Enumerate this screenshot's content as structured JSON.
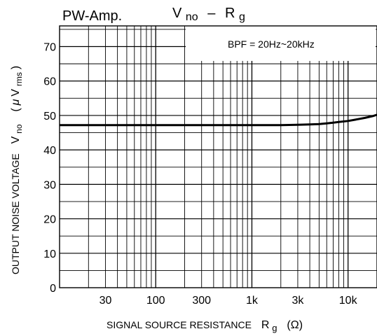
{
  "chart_data": {
    "type": "line",
    "title_main": "V",
    "title_main_sub": "no",
    "title_dash": "–",
    "title_r": "R",
    "title_r_sub": "g",
    "corner_label": "PW-Amp.",
    "annotation": "BPF = 20Hz~20kHz",
    "xlabel_text": "SIGNAL SOURCE RESISTANCE",
    "xlabel_sym": "R",
    "xlabel_sub": "g",
    "xlabel_unit": "(Ω)",
    "ylabel_text": "OUTPUT NOISE VOLTAGE",
    "ylabel_sym": "V",
    "ylabel_sub": "no",
    "ylabel_unit_open": "(",
    "ylabel_unit_mu": "μ",
    "ylabel_unit_v": "V",
    "ylabel_unit_sub": "rms",
    "ylabel_unit_close": ")",
    "x_scale": "log",
    "xlim": [
      10,
      20000
    ],
    "ylim": [
      0,
      76
    ],
    "x_ticks": [
      {
        "value": 30,
        "label": "30"
      },
      {
        "value": 100,
        "label": "100"
      },
      {
        "value": 300,
        "label": "300"
      },
      {
        "value": 1000,
        "label": "1k"
      },
      {
        "value": 3000,
        "label": "3k"
      },
      {
        "value": 10000,
        "label": "10k"
      }
    ],
    "y_ticks": [
      {
        "value": 0,
        "label": "0"
      },
      {
        "value": 10,
        "label": "10"
      },
      {
        "value": 20,
        "label": "20"
      },
      {
        "value": 30,
        "label": "30"
      },
      {
        "value": 40,
        "label": "40"
      },
      {
        "value": 50,
        "label": "50"
      },
      {
        "value": 60,
        "label": "60"
      },
      {
        "value": 70,
        "label": "70"
      }
    ],
    "series": [
      {
        "x": [
          10,
          100,
          1000,
          2000,
          3000,
          4000,
          5000,
          6000,
          7000,
          8000,
          10000,
          12000,
          15000,
          18000,
          20000
        ],
        "y": [
          47.2,
          47.2,
          47.2,
          47.2,
          47.3,
          47.4,
          47.5,
          47.7,
          47.9,
          48.1,
          48.4,
          48.8,
          49.3,
          49.8,
          50.2
        ]
      }
    ],
    "grid": true
  }
}
